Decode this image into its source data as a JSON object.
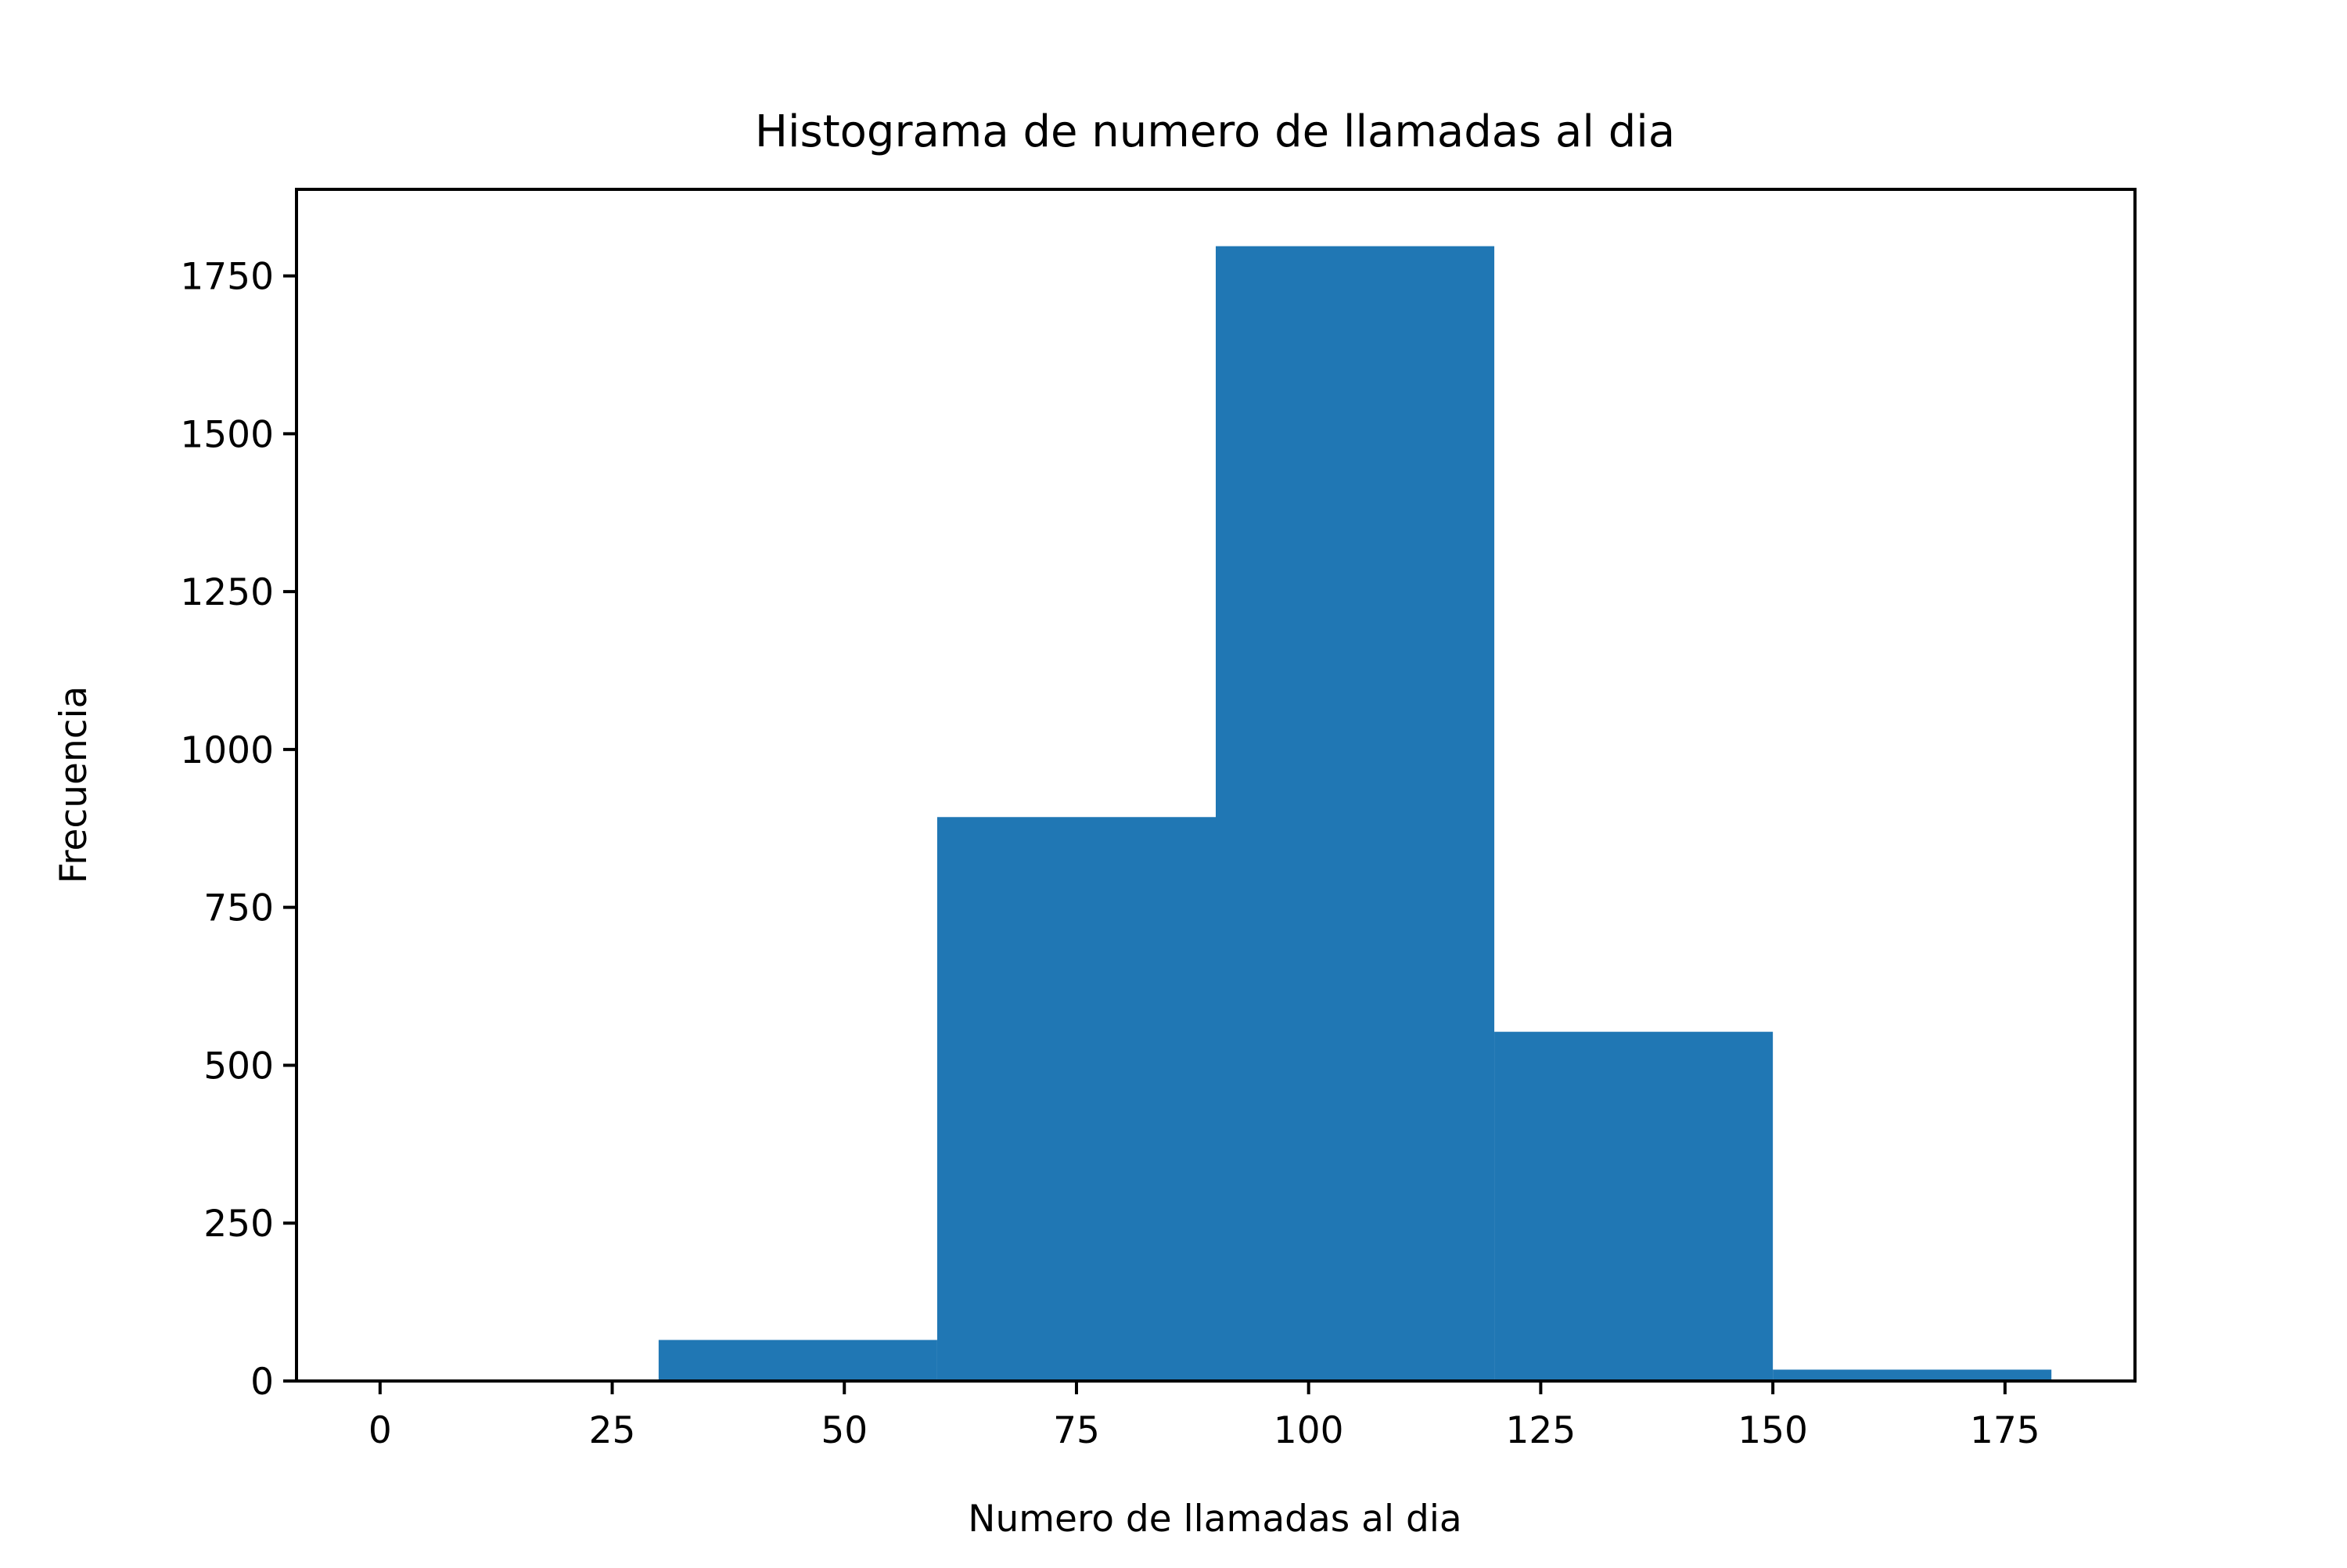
{
  "chart_data": {
    "type": "bar",
    "subtype": "histogram",
    "title": "Histograma de numero de llamadas al dia",
    "xlabel": "Numero de llamadas al dia",
    "ylabel": "Frecuencia",
    "bins": [
      {
        "start": 0,
        "end": 30,
        "value": 0
      },
      {
        "start": 30,
        "end": 60,
        "value": 65
      },
      {
        "start": 60,
        "end": 90,
        "value": 893
      },
      {
        "start": 90,
        "end": 120,
        "value": 1797
      },
      {
        "start": 120,
        "end": 150,
        "value": 553
      },
      {
        "start": 150,
        "end": 180,
        "value": 18
      }
    ],
    "xlim": [
      -9,
      189
    ],
    "ylim": [
      0,
      1887
    ],
    "xticks": [
      0,
      25,
      50,
      75,
      100,
      125,
      150,
      175
    ],
    "yticks": [
      0,
      250,
      500,
      750,
      1000,
      1250,
      1500,
      1750
    ],
    "bar_color": "#2077b4",
    "grid": false,
    "legend": "none"
  }
}
